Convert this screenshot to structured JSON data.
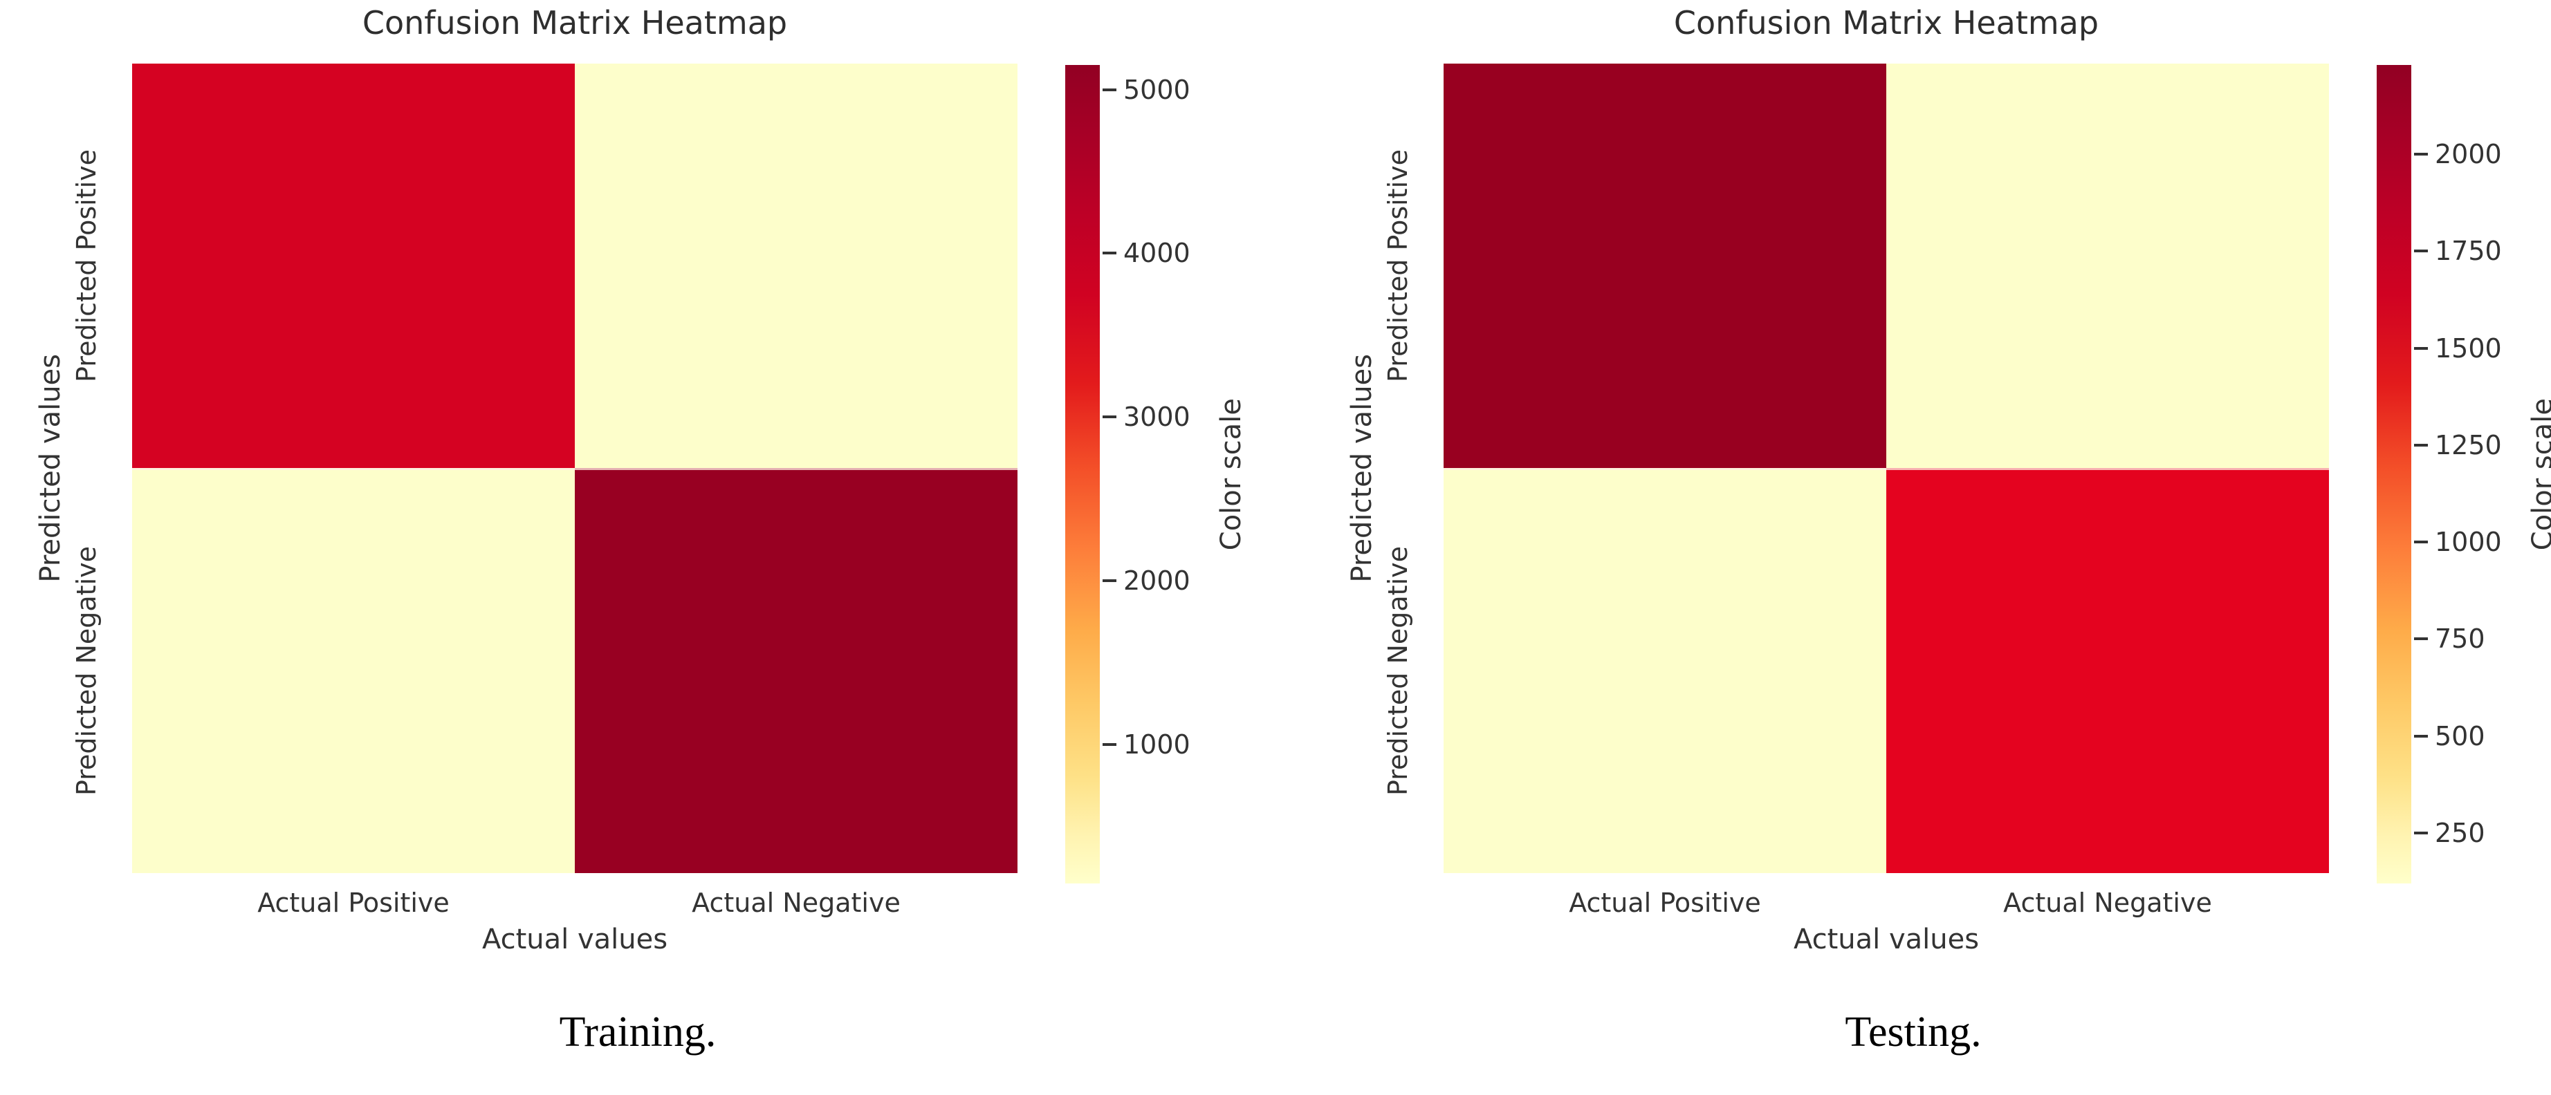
{
  "shared": {
    "title": "Confusion Matrix Heatmap",
    "x_axis_label": "Actual values",
    "y_axis_label": "Predicted values",
    "colorbar_label": "Color scale",
    "x_tick_labels": [
      "Actual Positive",
      "Actual Negative"
    ],
    "y_tick_labels": [
      "Predicted Positive",
      "Predicted Negative"
    ]
  },
  "colors": {
    "colormap": "YlOrRd",
    "axis_text": "#333333",
    "title_text": "#2e2e2e",
    "caption_text": "#000000",
    "pale_min_cell": "#fdfecb",
    "dark_max_cell": "#980022"
  },
  "panels": [
    {
      "caption": "Training.",
      "colorbar": {
        "vmin": 150,
        "vmax": 5150,
        "ticks": [
          5000,
          4000,
          3000,
          2000,
          1000
        ]
      },
      "cells": [
        {
          "row": "Predicted Positive",
          "col": "Actual Positive",
          "value_estimate": 4150,
          "color": "#d50222"
        },
        {
          "row": "Predicted Positive",
          "col": "Actual Negative",
          "value_estimate": 150,
          "color": "#fdfecb"
        },
        {
          "row": "Predicted Negative",
          "col": "Actual Positive",
          "value_estimate": 150,
          "color": "#fdfecb"
        },
        {
          "row": "Predicted Negative",
          "col": "Actual Negative",
          "value_estimate": 5150,
          "color": "#980022"
        }
      ]
    },
    {
      "caption": "Testing.",
      "colorbar": {
        "vmin": 120,
        "vmax": 2230,
        "ticks": [
          2000,
          1750,
          1500,
          1250,
          1000,
          750,
          500,
          250
        ]
      },
      "cells": [
        {
          "row": "Predicted Positive",
          "col": "Actual Positive",
          "value_estimate": 2230,
          "color": "#980020"
        },
        {
          "row": "Predicted Positive",
          "col": "Actual Negative",
          "value_estimate": 120,
          "color": "#fdfecb"
        },
        {
          "row": "Predicted Negative",
          "col": "Actual Positive",
          "value_estimate": 120,
          "color": "#fdfecb"
        },
        {
          "row": "Predicted Negative",
          "col": "Actual Negative",
          "value_estimate": 1850,
          "color": "#e4031f"
        }
      ]
    }
  ],
  "chart_data": [
    {
      "type": "heatmap",
      "title": "Confusion Matrix Heatmap",
      "caption": "Training.",
      "xlabel": "Actual values",
      "ylabel": "Predicted values",
      "x_categories": [
        "Actual Positive",
        "Actual Negative"
      ],
      "y_categories": [
        "Predicted Positive",
        "Predicted Negative"
      ],
      "matrix": [
        [
          4150,
          150
        ],
        [
          150,
          5150
        ]
      ],
      "values_estimated_from_color_scale": true,
      "colormap": "YlOrRd",
      "colorbar_label": "Color scale",
      "colorbar_ticks": [
        1000,
        2000,
        3000,
        4000,
        5000
      ],
      "vmin": 150,
      "vmax": 5150,
      "legend_position": "right-colorbar",
      "grid": false
    },
    {
      "type": "heatmap",
      "title": "Confusion Matrix Heatmap",
      "caption": "Testing.",
      "xlabel": "Actual values",
      "ylabel": "Predicted values",
      "x_categories": [
        "Actual Positive",
        "Actual Negative"
      ],
      "y_categories": [
        "Predicted Positive",
        "Predicted Negative"
      ],
      "matrix": [
        [
          2230,
          120
        ],
        [
          120,
          1850
        ]
      ],
      "values_estimated_from_color_scale": true,
      "colormap": "YlOrRd",
      "colorbar_label": "Color scale",
      "colorbar_ticks": [
        250,
        500,
        750,
        1000,
        1250,
        1500,
        1750,
        2000
      ],
      "vmin": 120,
      "vmax": 2230,
      "legend_position": "right-colorbar",
      "grid": false
    }
  ]
}
